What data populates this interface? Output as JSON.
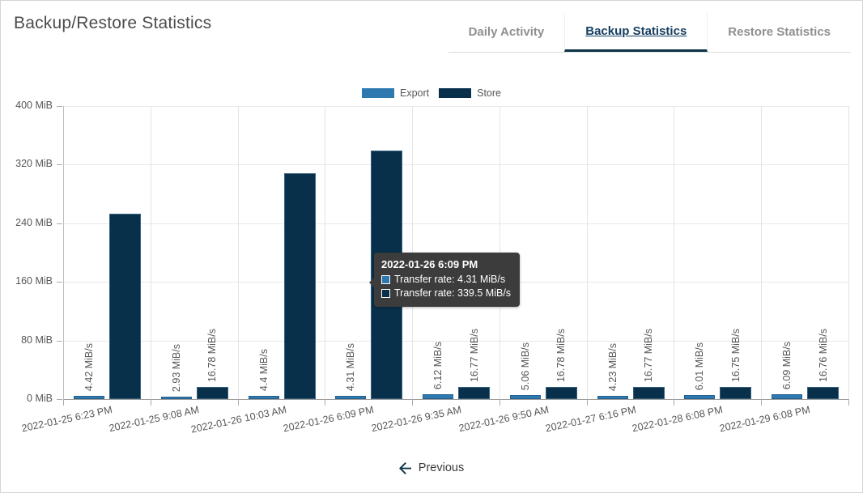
{
  "header": {
    "title": "Backup/Restore Statistics"
  },
  "tabs": [
    {
      "label": "Daily Activity",
      "active": false
    },
    {
      "label": "Backup Statistics",
      "active": true
    },
    {
      "label": "Restore Statistics",
      "active": false
    }
  ],
  "legend": [
    {
      "name": "Export",
      "color": "#2e79b0"
    },
    {
      "name": "Store",
      "color": "#08304b"
    }
  ],
  "colors": {
    "export_fill": "#2e79b0",
    "export_border": "#24618f",
    "store_fill": "#08304b",
    "store_border": "#35617e",
    "active_tab_text": "#163f60",
    "tab_underline": "#0d3349",
    "tooltip_bg": "#3c3c3c",
    "axis_text": "#575757"
  },
  "chart_data": {
    "type": "bar",
    "title": "",
    "unit": "MiB",
    "rate_unit": "MiB/s",
    "ylim": [
      0,
      400
    ],
    "y_ticks": [
      "400 MiB",
      "320 MiB",
      "240 MiB",
      "160 MiB",
      "80 MiB",
      "0 MiB"
    ],
    "categories": [
      "2022-01-25 6:23 PM",
      "2022-01-25 9:08 AM",
      "2022-01-26 10:03 AM",
      "2022-01-26 6:09 PM",
      "2022-01-26 9:35 AM",
      "2022-01-26 9:50 AM",
      "2022-01-27 6:16 PM",
      "2022-01-28 6:08 PM",
      "2022-01-29 6:08 PM"
    ],
    "legend_position": "top",
    "grid": true,
    "series": [
      {
        "name": "Export",
        "color": "#2e79b0",
        "border_color": "#24618f",
        "values": [
          4.42,
          2.93,
          4.4,
          4.31,
          6.12,
          5.06,
          4.23,
          6.01,
          6.09
        ],
        "labels": [
          "4.42 MiB/s",
          "2.93 MiB/s",
          "4.4 MiB/s",
          "4.31 MiB/s",
          "6.12 MiB/s",
          "5.06 MiB/s",
          "4.23 MiB/s",
          "6.01 MiB/s",
          "6.09 MiB/s"
        ]
      },
      {
        "name": "Store",
        "color": "#08304b",
        "border_color": "#35617e",
        "values": [
          253.5,
          16.78,
          308,
          339.5,
          16.77,
          16.78,
          16.77,
          16.75,
          16.76
        ],
        "labels": [
          "",
          "16.78 MiB/s",
          "",
          "",
          "16.77 MiB/s",
          "16.78 MiB/s",
          "16.77 MiB/s",
          "16.75 MiB/s",
          "16.76 MiB/s"
        ]
      }
    ]
  },
  "tooltip": {
    "title": "2022-01-26 6:09 PM",
    "rows": [
      {
        "series": "Export",
        "swatch_color": "#2e79b0",
        "text": "Transfer rate: 4.31 MiB/s"
      },
      {
        "series": "Store",
        "swatch_color": "#08304b",
        "text": "Transfer rate: 339.5 MiB/s"
      }
    ]
  },
  "pagination": {
    "previous_label": "Previous"
  }
}
